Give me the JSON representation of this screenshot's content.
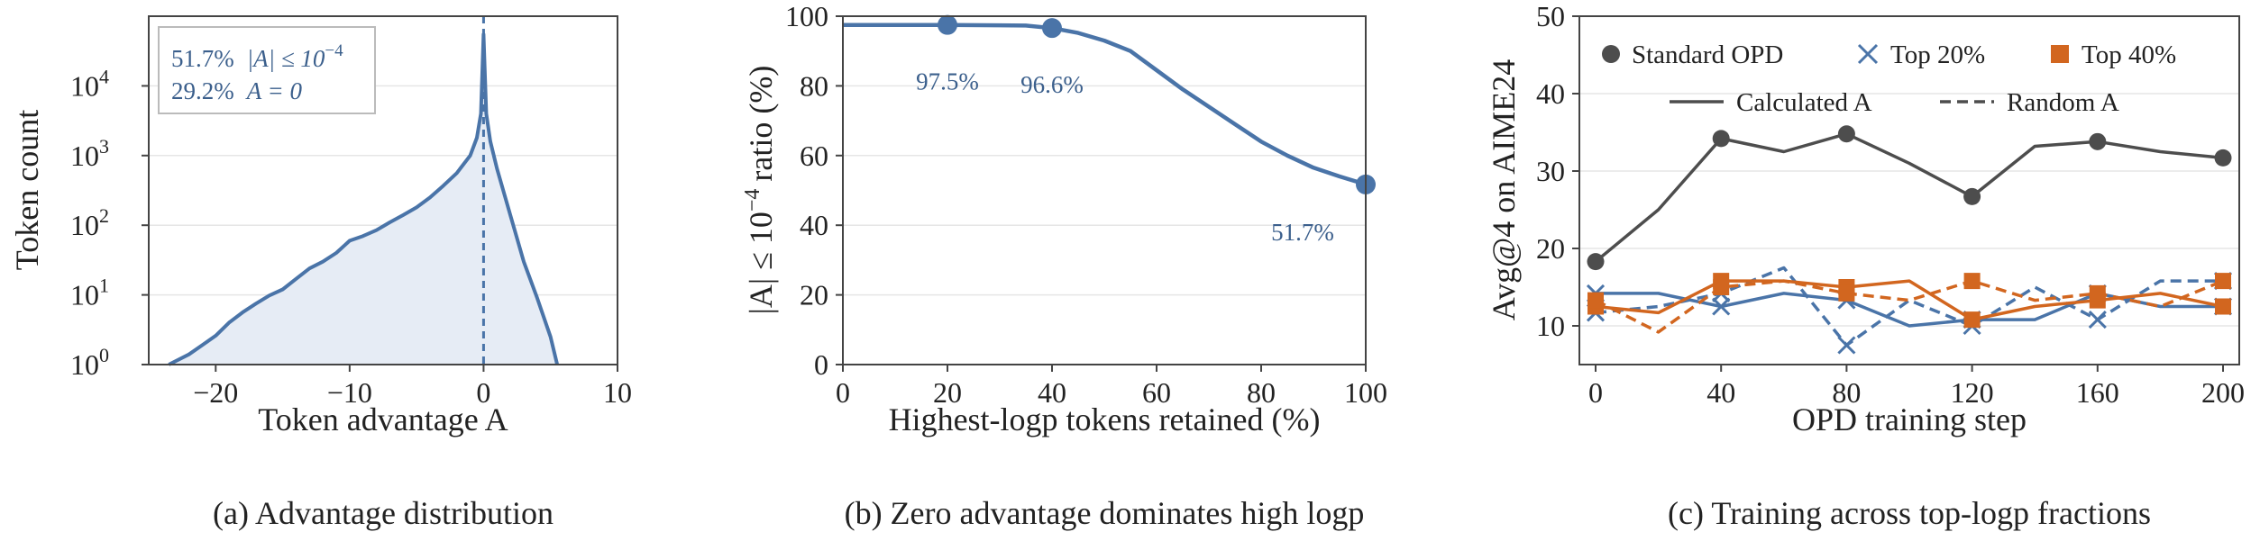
{
  "colors": {
    "blue": "#4a74a8",
    "blue_fill": "#e6ecf5",
    "gray": "#4d4d4d",
    "orange": "#d2661f"
  },
  "chart_data": [
    {
      "type": "area",
      "caption": "(a) Advantage distribution",
      "xlabel": "Token advantage A",
      "ylabel": "Token count",
      "xlim": [
        -25,
        10
      ],
      "yscale": "log",
      "ylim": [
        1,
        100000
      ],
      "xticks": [
        -20,
        -10,
        0,
        10
      ],
      "xtick_labels": [
        "−20",
        "−10",
        "0",
        "10"
      ],
      "ytick_labels": [
        "10",
        "10",
        "10",
        "10",
        "10"
      ],
      "ytick_exponents": [
        "0",
        "1",
        "2",
        "3",
        "4"
      ],
      "yticks": [
        1,
        10,
        100,
        1000,
        10000
      ],
      "reference_line_x": 0,
      "annotations": [
        {
          "value": "51.7%",
          "text": "|A| ≤ 10",
          "exp": "−4"
        },
        {
          "value": "29.2%",
          "text": "A = 0",
          "exp": ""
        }
      ],
      "x": [
        -23.5,
        -22,
        -21,
        -20,
        -19,
        -18,
        -17,
        -16,
        -15,
        -14,
        -13,
        -12,
        -11,
        -10,
        -9,
        -8,
        -7,
        -6,
        -5,
        -4,
        -3,
        -2,
        -1,
        -0.5,
        -0.2,
        0,
        0.2,
        0.5,
        1,
        2,
        3,
        4,
        5,
        5.5
      ],
      "y": [
        1,
        1.4,
        1.9,
        2.6,
        4,
        5.6,
        7.5,
        9.8,
        12,
        17,
        24,
        30,
        40,
        60,
        70,
        85,
        110,
        140,
        180,
        250,
        370,
        560,
        1000,
        1800,
        4000,
        55000,
        4000,
        1600,
        650,
        140,
        30,
        9,
        2.5,
        1
      ]
    },
    {
      "type": "line",
      "caption": "(b) Zero advantage dominates high logp",
      "xlabel": "Highest-logp tokens retained (%)",
      "ylabel_prefix": "|A| ≤ 10",
      "ylabel_exp": "−4",
      "ylabel_suffix": "ratio (%)",
      "xlim": [
        0,
        100
      ],
      "ylim": [
        0,
        100
      ],
      "xticks": [
        0,
        20,
        40,
        60,
        80,
        100
      ],
      "yticks": [
        0,
        20,
        40,
        60,
        80,
        100
      ],
      "x": [
        0,
        10,
        20,
        30,
        35,
        40,
        45,
        50,
        55,
        60,
        65,
        70,
        75,
        80,
        85,
        90,
        95,
        100
      ],
      "y": [
        97.5,
        97.5,
        97.5,
        97.4,
        97.3,
        96.6,
        95.2,
        93,
        90,
        84.5,
        79,
        74,
        69,
        64,
        60,
        56.5,
        54,
        51.7
      ],
      "markers": [
        {
          "x": 20,
          "y": 97.5,
          "label": "97.5%"
        },
        {
          "x": 40,
          "y": 96.6,
          "label": "96.6%"
        },
        {
          "x": 100,
          "y": 51.7,
          "label": "51.7%"
        }
      ]
    },
    {
      "type": "line",
      "caption": "(c) Training across top-logp fractions",
      "xlabel": "OPD training step",
      "ylabel": "Avg@4 on AIME24",
      "xlim": [
        0,
        200
      ],
      "ylim": [
        5,
        50
      ],
      "xticks": [
        0,
        40,
        80,
        120,
        160,
        200
      ],
      "yticks": [
        10,
        20,
        30,
        40,
        50
      ],
      "legend": {
        "placement": "top",
        "entries": [
          "Standard OPD",
          "Top 20%",
          "Top 40%",
          "Calculated A",
          "Random A"
        ]
      },
      "series": [
        {
          "name": "Standard OPD",
          "style": "solid",
          "color": "gray",
          "marker": "circle",
          "x": [
            0,
            20,
            40,
            60,
            80,
            100,
            120,
            140,
            160,
            180,
            200
          ],
          "y": [
            18.3,
            25,
            34.2,
            32.5,
            34.8,
            31,
            26.7,
            33.2,
            33.8,
            32.5,
            31.7
          ],
          "marker_x": [
            0,
            40,
            80,
            120,
            160,
            200
          ]
        },
        {
          "name": "Top 20% · Calculated A",
          "style": "solid",
          "color": "blue",
          "marker": "x",
          "x": [
            0,
            20,
            40,
            60,
            80,
            100,
            120,
            140,
            160,
            180,
            200
          ],
          "y": [
            14.2,
            14.2,
            12.5,
            14.2,
            13.3,
            10,
            10.8,
            10.8,
            14.2,
            12.5,
            12.5
          ],
          "marker_x": [
            0,
            40,
            80,
            120,
            160,
            200
          ]
        },
        {
          "name": "Top 20% · Random A",
          "style": "dashed",
          "color": "blue",
          "marker": "x",
          "x": [
            0,
            20,
            40,
            60,
            80,
            100,
            120,
            140,
            160,
            180,
            200
          ],
          "y": [
            11.7,
            12.5,
            14.2,
            17.5,
            7.5,
            13.3,
            10,
            15,
            10.8,
            15.8,
            15.8
          ],
          "marker_x": [
            0,
            40,
            80,
            120,
            160,
            200
          ]
        },
        {
          "name": "Top 40% · Calculated A",
          "style": "solid",
          "color": "orange",
          "marker": "square",
          "x": [
            0,
            20,
            40,
            60,
            80,
            100,
            120,
            140,
            160,
            180,
            200
          ],
          "y": [
            12.5,
            11.7,
            15.8,
            15.8,
            15,
            15.8,
            10.8,
            12.5,
            13.3,
            14.2,
            12.5
          ],
          "marker_x": [
            0,
            40,
            80,
            120,
            160,
            200
          ]
        },
        {
          "name": "Top 40% · Random A",
          "style": "dashed",
          "color": "orange",
          "marker": "square",
          "x": [
            0,
            20,
            40,
            60,
            80,
            100,
            120,
            140,
            160,
            180,
            200
          ],
          "y": [
            13.3,
            9.2,
            15,
            15.8,
            14.2,
            13.3,
            15.8,
            13.3,
            14.2,
            12.5,
            15.8
          ],
          "marker_x": [
            0,
            40,
            80,
            120,
            160,
            200
          ]
        }
      ]
    }
  ]
}
